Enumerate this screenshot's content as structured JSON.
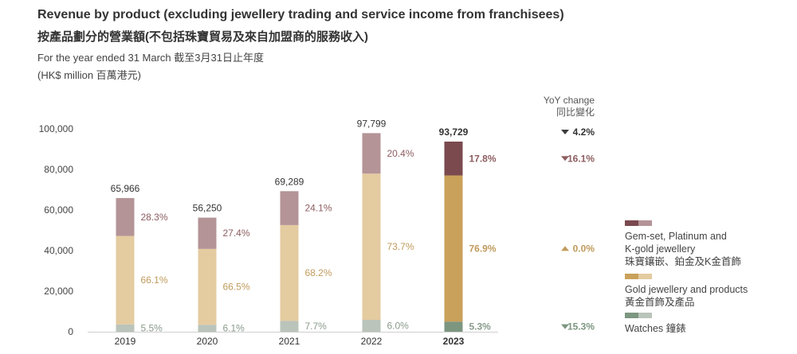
{
  "header": {
    "title_en": "Revenue by product (excluding jewellery trading and service income from franchisees)",
    "title_zh": "按產品劃分的營業額(不包括珠寶貿易及來自加盟商的服務收入)",
    "subtitle": "For the year ended 31 March 截至3月31日止年度",
    "unit": "(HK$ million 百萬港元)"
  },
  "yoy_header": {
    "line1": "YoY change",
    "line2": "同比變化"
  },
  "legend": [
    {
      "line1": "Gem-set, Platinum and",
      "line2": "K-gold jewellery",
      "line3": "珠寶鑲嵌、鉑金及K金首飾",
      "colors": [
        "#7a4a4e",
        "#b49497"
      ]
    },
    {
      "line1": "Gold jewellery and products",
      "line2": "黃金首飾及產品",
      "colors": [
        "#c9a15a",
        "#e4cba0"
      ]
    },
    {
      "line1": "Watches 鐘錶",
      "colors": [
        "#7c9680",
        "#bac4ba"
      ]
    }
  ],
  "chart_data": {
    "type": "bar",
    "stacked": true,
    "categories": [
      "2019",
      "2020",
      "2021",
      "2022",
      "2023"
    ],
    "highlight_category": "2023",
    "ylim": [
      0,
      100000
    ],
    "y_ticks": [
      "0",
      "20,000",
      "40,000",
      "60,000",
      "80,000",
      "100,000"
    ],
    "totals": [
      65966,
      56250,
      69289,
      97799,
      93729
    ],
    "total_labels": [
      "65,966",
      "56,250",
      "69,289",
      "97,799",
      "93,729"
    ],
    "series": [
      {
        "name": "Watches 鐘錶",
        "shares": [
          5.5,
          6.1,
          7.7,
          6.0,
          5.3
        ],
        "labels": [
          "5.5%",
          "6.1%",
          "7.7%",
          "6.0%",
          "5.3%"
        ],
        "color": "#bac4ba",
        "highlight_color": "#7c9680",
        "label_color": "#8a9a8c"
      },
      {
        "name": "Gold jewellery and products 黃金首飾及產品",
        "shares": [
          66.1,
          66.5,
          68.2,
          73.7,
          76.9
        ],
        "labels": [
          "66.1%",
          "66.5%",
          "68.2%",
          "73.7%",
          "76.9%"
        ],
        "color": "#e4cba0",
        "highlight_color": "#c9a15a",
        "label_color": "#c09b5c"
      },
      {
        "name": "Gem-set, Platinum and K-gold jewellery 珠寶鑲嵌、鉑金及K金首飾",
        "shares": [
          28.3,
          27.4,
          24.1,
          20.4,
          17.8
        ],
        "labels": [
          "28.3%",
          "27.4%",
          "24.1%",
          "20.4%",
          "17.8%"
        ],
        "color": "#b49497",
        "highlight_color": "#7a4a4e",
        "label_color": "#8d5e61"
      }
    ],
    "yoy_2023": [
      {
        "row": "total",
        "direction": "down",
        "label": "4.2%"
      },
      {
        "row": "Gem-set, Platinum and K-gold jewellery",
        "direction": "down",
        "label": "16.1%"
      },
      {
        "row": "Gold jewellery and products",
        "direction": "up",
        "label": "0.0%"
      },
      {
        "row": "Watches",
        "direction": "down",
        "label": "15.3%"
      }
    ]
  }
}
